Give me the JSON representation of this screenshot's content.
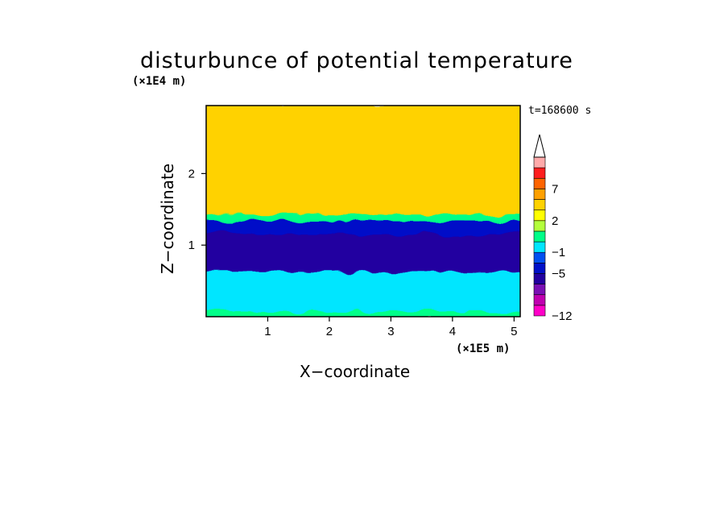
{
  "chart_data": {
    "type": "heatmap",
    "title": "disturbunce of potential temperature",
    "time_label": "t=168600 s",
    "xlabel": "X−coordinate",
    "ylabel": "Z−coordinate",
    "x_unit": "(×1E5 m)",
    "y_unit": "(×1E4 m)",
    "xlim": [
      0,
      5.1
    ],
    "ylim": [
      0,
      2.95
    ],
    "x_ticks": [
      1,
      2,
      3,
      4,
      5
    ],
    "y_ticks": [
      1,
      2
    ],
    "colorbar": {
      "levels": [
        -12,
        -10,
        -8,
        -6,
        -5,
        -3,
        -1,
        0,
        1,
        2,
        3,
        5,
        7,
        9,
        11
      ],
      "labels": [
        "−12",
        "−5",
        "−1",
        "2",
        "7"
      ],
      "colors": [
        "#ff00c8",
        "#c000b0",
        "#7a10b4",
        "#2200a0",
        "#0010c8",
        "#0050f0",
        "#00e6ff",
        "#00ff88",
        "#b4ff3c",
        "#ffff00",
        "#ffd200",
        "#ffa000",
        "#ff6400",
        "#ff1e1e",
        "#ffaaaa"
      ],
      "extend": "max"
    },
    "bands": [
      {
        "z": [
          0.0,
          0.1
        ],
        "value": 0.5
      },
      {
        "z": [
          0.1,
          0.65
        ],
        "value": -1
      },
      {
        "z": [
          0.65,
          1.18
        ],
        "value": -6
      },
      {
        "z": [
          1.18,
          1.35
        ],
        "value": -3.5
      },
      {
        "z": [
          1.35,
          1.45
        ],
        "value": 0.5
      },
      {
        "z": [
          1.45,
          2.95
        ],
        "value": 3.5
      }
    ]
  }
}
